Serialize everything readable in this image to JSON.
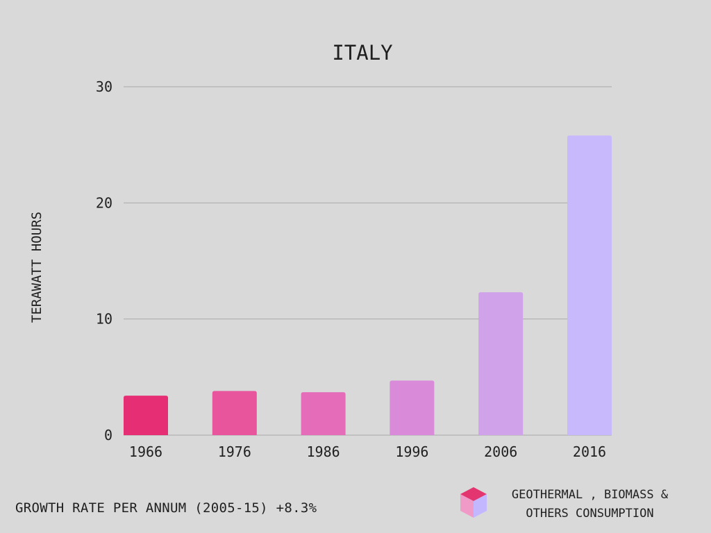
{
  "chart_data": {
    "type": "bar",
    "title": "ITALY",
    "xlabel": "",
    "ylabel": "TERAWATT HOURS",
    "categories": [
      "1966",
      "1976",
      "1986",
      "1996",
      "2006",
      "2016"
    ],
    "values": [
      3.4,
      3.8,
      3.7,
      4.7,
      12.3,
      25.8
    ],
    "bar_colors": [
      "#e62e74",
      "#e8559c",
      "#e46cb9",
      "#d98ad9",
      "#cfa2ea",
      "#c7b9fb"
    ],
    "ylim": [
      0,
      30
    ],
    "yticks": [
      0,
      10,
      20,
      30
    ],
    "grid": true,
    "legend": {
      "position": "bottom-right",
      "lines": [
        "GEOTHERMAL , BIOMASS &",
        "OTHERS CONSUMPTION"
      ]
    }
  },
  "footer": {
    "text": "GROWTH RATE PER ANNUM (2005-15) +8.3%"
  },
  "colors": {
    "background": "#d9d9d9",
    "text": "#1f1f1f",
    "grid": "#a9a9a9",
    "legend_top": "#e3356f",
    "legend_left": "#f09ac8",
    "legend_right": "#c3b8ff"
  }
}
